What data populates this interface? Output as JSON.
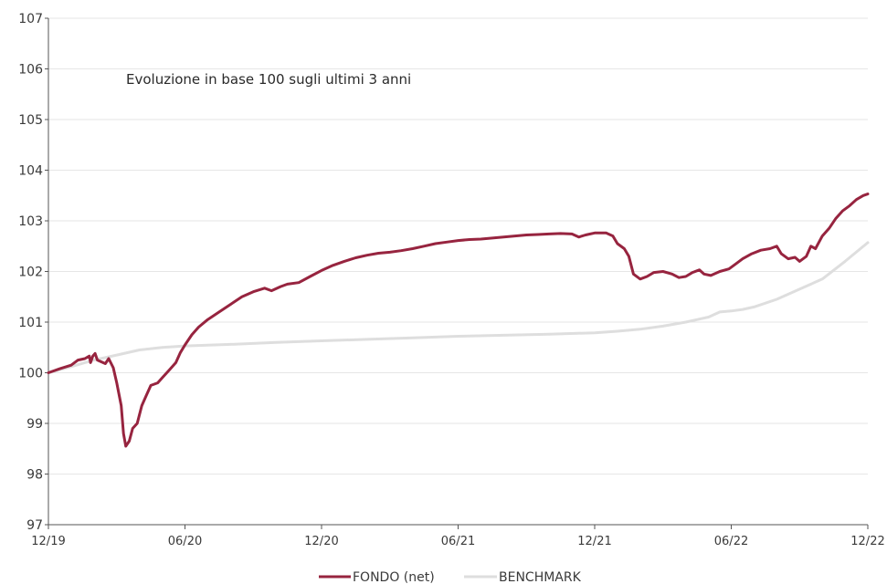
{
  "chart_data": {
    "type": "line",
    "annotation": "Evoluzione in base 100 sugli ultimi 3 anni",
    "xlabel": "",
    "ylabel": "",
    "x_ticks": [
      "12/19",
      "06/20",
      "12/20",
      "06/21",
      "12/21",
      "06/22",
      "12/22"
    ],
    "y_ticks": [
      97,
      98,
      99,
      100,
      101,
      102,
      103,
      104,
      105,
      106,
      107
    ],
    "ylim": [
      97,
      107
    ],
    "xlim": [
      0,
      36
    ],
    "x_unit": "months since 12/19",
    "grid": "horizontal",
    "legend_position": "bottom-center",
    "series": [
      {
        "name": "FONDO (net)",
        "color": "#97243f",
        "points": [
          [
            0,
            100.0
          ],
          [
            0.5,
            100.08
          ],
          [
            1.0,
            100.15
          ],
          [
            1.3,
            100.25
          ],
          [
            1.6,
            100.28
          ],
          [
            1.8,
            100.33
          ],
          [
            1.85,
            100.2
          ],
          [
            1.95,
            100.33
          ],
          [
            2.05,
            100.38
          ],
          [
            2.15,
            100.25
          ],
          [
            2.3,
            100.22
          ],
          [
            2.5,
            100.18
          ],
          [
            2.65,
            100.28
          ],
          [
            2.85,
            100.1
          ],
          [
            3.0,
            99.8
          ],
          [
            3.2,
            99.35
          ],
          [
            3.3,
            98.8
          ],
          [
            3.4,
            98.55
          ],
          [
            3.55,
            98.65
          ],
          [
            3.7,
            98.9
          ],
          [
            3.9,
            99.0
          ],
          [
            4.1,
            99.35
          ],
          [
            4.3,
            99.55
          ],
          [
            4.5,
            99.75
          ],
          [
            4.8,
            99.8
          ],
          [
            5.0,
            99.9
          ],
          [
            5.3,
            100.05
          ],
          [
            5.6,
            100.2
          ],
          [
            5.8,
            100.4
          ],
          [
            6.0,
            100.55
          ],
          [
            6.3,
            100.75
          ],
          [
            6.6,
            100.9
          ],
          [
            7.0,
            101.05
          ],
          [
            7.5,
            101.2
          ],
          [
            8.0,
            101.35
          ],
          [
            8.5,
            101.5
          ],
          [
            9.0,
            101.6
          ],
          [
            9.5,
            101.67
          ],
          [
            9.8,
            101.62
          ],
          [
            10.2,
            101.7
          ],
          [
            10.5,
            101.75
          ],
          [
            11.0,
            101.78
          ],
          [
            11.5,
            101.9
          ],
          [
            12.0,
            102.02
          ],
          [
            12.5,
            102.12
          ],
          [
            13.0,
            102.2
          ],
          [
            13.5,
            102.27
          ],
          [
            14.0,
            102.32
          ],
          [
            14.5,
            102.36
          ],
          [
            15.0,
            102.38
          ],
          [
            15.5,
            102.41
          ],
          [
            16.0,
            102.45
          ],
          [
            16.5,
            102.5
          ],
          [
            17.0,
            102.55
          ],
          [
            17.5,
            102.58
          ],
          [
            18.0,
            102.61
          ],
          [
            18.5,
            102.63
          ],
          [
            19.0,
            102.64
          ],
          [
            19.5,
            102.66
          ],
          [
            20.0,
            102.68
          ],
          [
            20.5,
            102.7
          ],
          [
            21.0,
            102.72
          ],
          [
            21.5,
            102.73
          ],
          [
            22.0,
            102.74
          ],
          [
            22.5,
            102.75
          ],
          [
            23.0,
            102.74
          ],
          [
            23.3,
            102.68
          ],
          [
            23.6,
            102.72
          ],
          [
            24.0,
            102.76
          ],
          [
            24.5,
            102.76
          ],
          [
            24.8,
            102.7
          ],
          [
            25.0,
            102.55
          ],
          [
            25.3,
            102.45
          ],
          [
            25.5,
            102.3
          ],
          [
            25.7,
            101.95
          ],
          [
            26.0,
            101.85
          ],
          [
            26.3,
            101.9
          ],
          [
            26.6,
            101.98
          ],
          [
            27.0,
            102.0
          ],
          [
            27.4,
            101.95
          ],
          [
            27.7,
            101.88
          ],
          [
            28.0,
            101.9
          ],
          [
            28.3,
            101.98
          ],
          [
            28.6,
            102.03
          ],
          [
            28.8,
            101.95
          ],
          [
            29.1,
            101.92
          ],
          [
            29.5,
            102.0
          ],
          [
            29.9,
            102.05
          ],
          [
            30.2,
            102.15
          ],
          [
            30.5,
            102.25
          ],
          [
            30.9,
            102.35
          ],
          [
            31.3,
            102.42
          ],
          [
            31.7,
            102.45
          ],
          [
            32.0,
            102.5
          ],
          [
            32.2,
            102.35
          ],
          [
            32.5,
            102.25
          ],
          [
            32.8,
            102.28
          ],
          [
            33.0,
            102.2
          ],
          [
            33.3,
            102.3
          ],
          [
            33.5,
            102.5
          ],
          [
            33.7,
            102.45
          ],
          [
            34.0,
            102.7
          ],
          [
            34.3,
            102.85
          ],
          [
            34.6,
            103.05
          ],
          [
            34.9,
            103.2
          ],
          [
            35.2,
            103.3
          ],
          [
            35.5,
            103.42
          ],
          [
            35.8,
            103.5
          ],
          [
            36.0,
            103.53
          ]
        ]
      },
      {
        "name": "BENCHMARK",
        "color": "#dedede",
        "points": [
          [
            0,
            100.0
          ],
          [
            1,
            100.12
          ],
          [
            2,
            100.25
          ],
          [
            3,
            100.35
          ],
          [
            4,
            100.45
          ],
          [
            5,
            100.5
          ],
          [
            6,
            100.53
          ],
          [
            8,
            100.56
          ],
          [
            10,
            100.6
          ],
          [
            12,
            100.63
          ],
          [
            14,
            100.66
          ],
          [
            16,
            100.69
          ],
          [
            18,
            100.72
          ],
          [
            20,
            100.74
          ],
          [
            22,
            100.76
          ],
          [
            24,
            100.79
          ],
          [
            25,
            100.82
          ],
          [
            26,
            100.86
          ],
          [
            27,
            100.92
          ],
          [
            28,
            101.0
          ],
          [
            29,
            101.1
          ],
          [
            29.5,
            101.2
          ],
          [
            30,
            101.22
          ],
          [
            30.5,
            101.25
          ],
          [
            31,
            101.3
          ],
          [
            32,
            101.45
          ],
          [
            33,
            101.65
          ],
          [
            34,
            101.85
          ],
          [
            35,
            102.2
          ],
          [
            36,
            102.57
          ]
        ]
      }
    ]
  }
}
